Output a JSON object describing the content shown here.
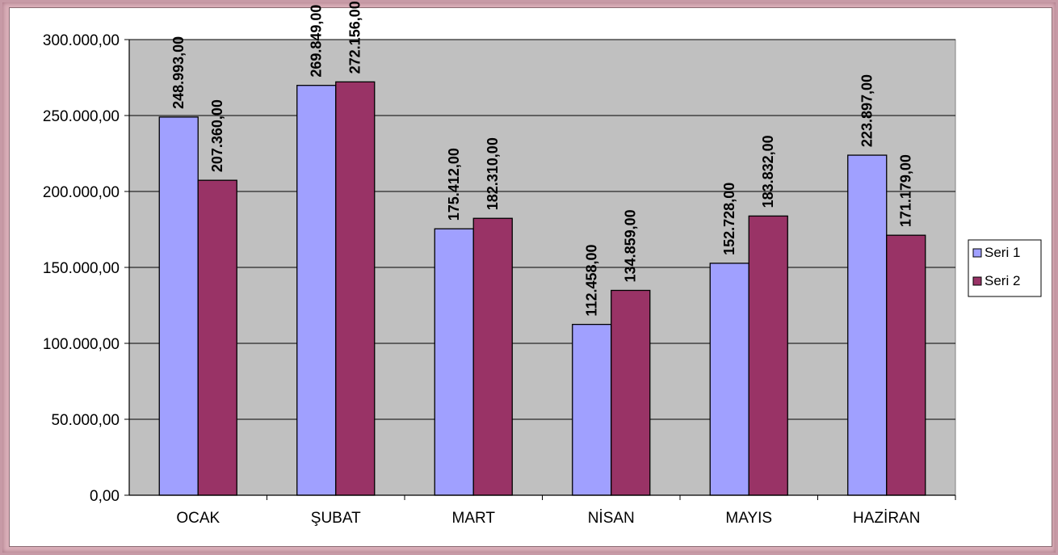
{
  "chart_data": {
    "type": "bar",
    "categories": [
      "OCAK",
      "ŞUBAT",
      "MART",
      "NİSAN",
      "MAYIS",
      "HAZİRAN"
    ],
    "series": [
      {
        "name": "Seri 1",
        "color": "#a0a0ff",
        "values": [
          248993,
          269849,
          175412,
          112458,
          152728,
          223897
        ],
        "labels": [
          "248.993,00",
          "269.849,00",
          "175.412,00",
          "112.458,00",
          "152.728,00",
          "223.897,00"
        ]
      },
      {
        "name": "Seri 2",
        "color": "#993366",
        "values": [
          207360,
          272156,
          182310,
          134859,
          183832,
          171179
        ],
        "labels": [
          "207.360,00",
          "272.156,00",
          "182.310,00",
          "134.859,00",
          "183.832,00",
          "171.179,00"
        ]
      }
    ],
    "ylim": [
      0,
      300000
    ],
    "yticks": [
      0,
      50000,
      100000,
      150000,
      200000,
      250000,
      300000
    ],
    "ytick_labels": [
      "0,00",
      "50.000,00",
      "100.000,00",
      "150.000,00",
      "200.000,00",
      "250.000,00",
      "300.000,00"
    ],
    "grid": true,
    "plot_background": "#c0c0c0",
    "legend_position": "right"
  }
}
